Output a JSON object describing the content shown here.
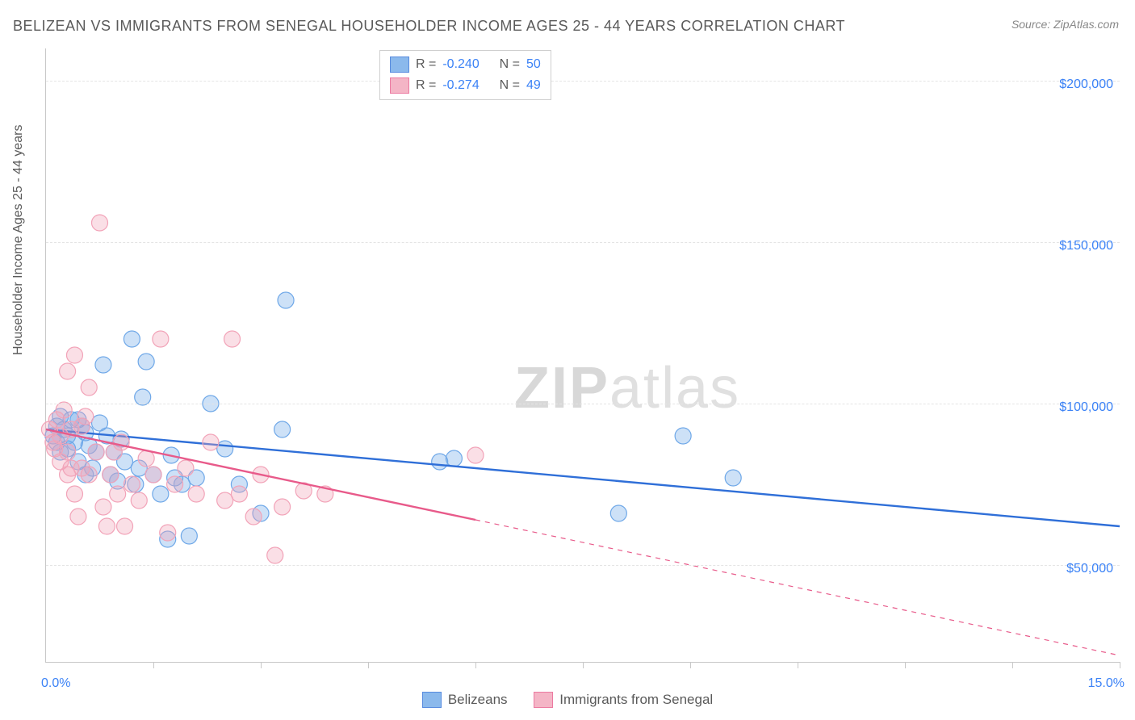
{
  "title": "BELIZEAN VS IMMIGRANTS FROM SENEGAL HOUSEHOLDER INCOME AGES 25 - 44 YEARS CORRELATION CHART",
  "source": "Source: ZipAtlas.com",
  "y_axis_title": "Householder Income Ages 25 - 44 years",
  "watermark_a": "ZIP",
  "watermark_b": "atlas",
  "chart": {
    "type": "scatter-regression",
    "background_color": "#ffffff",
    "grid_color": "#e4e4e4",
    "axis_color": "#c8c8c8",
    "tick_label_color": "#3b82f6",
    "axis_title_color": "#5a5a5a",
    "title_color": "#5a5a5a",
    "title_fontsize": 18,
    "label_fontsize": 16,
    "xlim": [
      0.0,
      15.0
    ],
    "ylim": [
      20000,
      210000
    ],
    "y_ticks": [
      50000,
      100000,
      150000,
      200000
    ],
    "y_tick_labels": [
      "$50,000",
      "$100,000",
      "$150,000",
      "$200,000"
    ],
    "x_ticks_minor": [
      1.5,
      3.0,
      4.5,
      6.0,
      7.5,
      9.0,
      10.5,
      12.0,
      13.5,
      15.0
    ],
    "x_tick_labels": [
      {
        "x": 0.0,
        "label": "0.0%"
      },
      {
        "x": 15.0,
        "label": "15.0%"
      }
    ],
    "marker_radius": 10,
    "marker_stroke_width": 1.2,
    "marker_fill_opacity": 0.35,
    "line_width": 2.4,
    "series": [
      {
        "name": "Belizeans",
        "color": "#6fa8e8",
        "line_color": "#2f6fd8",
        "R": "-0.240",
        "N": "50",
        "regression": {
          "x1": 0.0,
          "y1": 92000,
          "x2": 15.0,
          "y2": 62000,
          "solid_until_x": 15.0
        },
        "points": [
          [
            0.1,
            90000
          ],
          [
            0.15,
            93000
          ],
          [
            0.15,
            88000
          ],
          [
            0.2,
            96000
          ],
          [
            0.2,
            85000
          ],
          [
            0.25,
            92000
          ],
          [
            0.3,
            90000
          ],
          [
            0.3,
            86000
          ],
          [
            0.35,
            95000
          ],
          [
            0.4,
            88000
          ],
          [
            0.45,
            82000
          ],
          [
            0.5,
            93000
          ],
          [
            0.55,
            78000
          ],
          [
            0.6,
            87000
          ],
          [
            0.65,
            80000
          ],
          [
            0.7,
            85000
          ],
          [
            0.8,
            112000
          ],
          [
            0.85,
            90000
          ],
          [
            0.9,
            78000
          ],
          [
            0.95,
            85000
          ],
          [
            1.0,
            76000
          ],
          [
            1.1,
            82000
          ],
          [
            1.2,
            120000
          ],
          [
            1.25,
            75000
          ],
          [
            1.3,
            80000
          ],
          [
            1.35,
            102000
          ],
          [
            1.4,
            113000
          ],
          [
            1.5,
            78000
          ],
          [
            1.6,
            72000
          ],
          [
            1.7,
            58000
          ],
          [
            1.75,
            84000
          ],
          [
            1.8,
            77000
          ],
          [
            1.9,
            75000
          ],
          [
            2.0,
            59000
          ],
          [
            2.1,
            77000
          ],
          [
            2.3,
            100000
          ],
          [
            2.5,
            86000
          ],
          [
            2.7,
            75000
          ],
          [
            3.0,
            66000
          ],
          [
            3.3,
            92000
          ],
          [
            3.35,
            132000
          ],
          [
            5.5,
            82000
          ],
          [
            5.7,
            83000
          ],
          [
            8.0,
            66000
          ],
          [
            8.9,
            90000
          ],
          [
            9.6,
            77000
          ],
          [
            0.45,
            95000
          ],
          [
            0.55,
            91000
          ],
          [
            0.75,
            94000
          ],
          [
            1.05,
            89000
          ]
        ]
      },
      {
        "name": "Immigrants from Senegal",
        "color": "#f2a3b8",
        "line_color": "#e85a8a",
        "R": "-0.274",
        "N": "49",
        "regression": {
          "x1": 0.0,
          "y1": 92000,
          "x2": 15.0,
          "y2": 22000,
          "solid_until_x": 6.0
        },
        "points": [
          [
            0.05,
            92000
          ],
          [
            0.1,
            88000
          ],
          [
            0.15,
            95000
          ],
          [
            0.2,
            82000
          ],
          [
            0.2,
            90000
          ],
          [
            0.25,
            98000
          ],
          [
            0.3,
            85000
          ],
          [
            0.3,
            110000
          ],
          [
            0.3,
            78000
          ],
          [
            0.35,
            92000
          ],
          [
            0.4,
            72000
          ],
          [
            0.4,
            115000
          ],
          [
            0.45,
            65000
          ],
          [
            0.5,
            80000
          ],
          [
            0.5,
            93000
          ],
          [
            0.55,
            96000
          ],
          [
            0.6,
            78000
          ],
          [
            0.6,
            105000
          ],
          [
            0.7,
            85000
          ],
          [
            0.75,
            156000
          ],
          [
            0.8,
            68000
          ],
          [
            0.85,
            62000
          ],
          [
            0.9,
            78000
          ],
          [
            0.95,
            85000
          ],
          [
            1.0,
            72000
          ],
          [
            1.05,
            88000
          ],
          [
            1.1,
            62000
          ],
          [
            1.2,
            75000
          ],
          [
            1.3,
            70000
          ],
          [
            1.4,
            83000
          ],
          [
            1.5,
            78000
          ],
          [
            1.6,
            120000
          ],
          [
            1.7,
            60000
          ],
          [
            1.8,
            75000
          ],
          [
            1.95,
            80000
          ],
          [
            2.1,
            72000
          ],
          [
            2.3,
            88000
          ],
          [
            2.5,
            70000
          ],
          [
            2.6,
            120000
          ],
          [
            2.7,
            72000
          ],
          [
            2.9,
            65000
          ],
          [
            3.0,
            78000
          ],
          [
            3.2,
            53000
          ],
          [
            3.3,
            68000
          ],
          [
            3.6,
            73000
          ],
          [
            3.9,
            72000
          ],
          [
            6.0,
            84000
          ],
          [
            0.12,
            86000
          ],
          [
            0.35,
            80000
          ]
        ]
      }
    ]
  },
  "legend_bottom": {
    "items": [
      "Belizeans",
      "Immigrants from Senegal"
    ]
  },
  "legend_top": {
    "r_label": "R =",
    "n_label": "N ="
  }
}
